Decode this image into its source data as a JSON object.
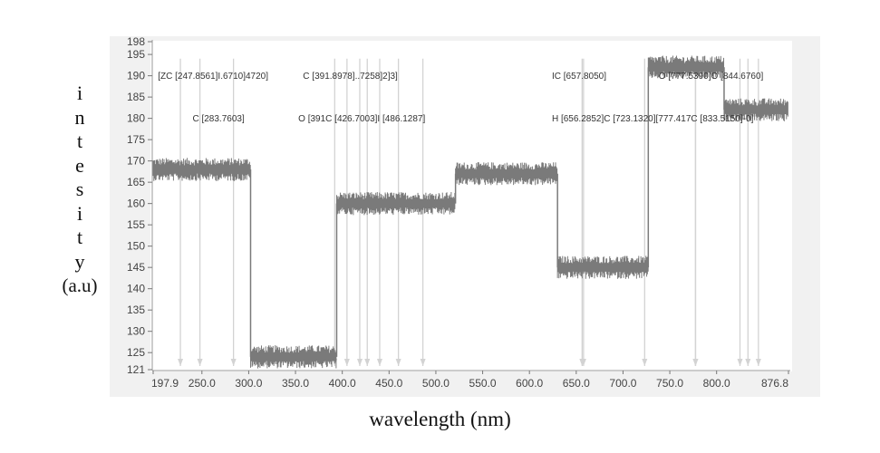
{
  "chart_data": {
    "type": "line",
    "title": "",
    "xlabel": "wavelength (nm)",
    "ylabel": "intesity (a.u)",
    "ylabel_letters": [
      "i",
      "n",
      "t",
      "e",
      "s",
      "i",
      "t",
      "y"
    ],
    "ylabel_unit": "(a.u)",
    "xlim": [
      197.9,
      876.8
    ],
    "ylim": [
      121,
      198
    ],
    "xtick_labels": [
      "197.9",
      "250.0",
      "300.0",
      "350.0",
      "400.0",
      "450.0",
      "500.0",
      "550.0",
      "600.0",
      "650.0",
      "700.0",
      "750.0",
      "800.0",
      "876.8"
    ],
    "xtick_values": [
      197.9,
      250,
      300,
      350,
      400,
      450,
      500,
      550,
      600,
      650,
      700,
      750,
      800,
      876.8
    ],
    "ytick_labels": [
      "198",
      "195",
      "190",
      "185",
      "180",
      "175",
      "170",
      "165",
      "160",
      "155",
      "150",
      "145",
      "140",
      "135",
      "130",
      "125",
      "121"
    ],
    "ytick_values": [
      198,
      195,
      190,
      185,
      180,
      175,
      170,
      165,
      160,
      155,
      150,
      145,
      140,
      135,
      130,
      125,
      121
    ],
    "grid": false,
    "series_color": "#7a7a7a",
    "marker_color": "#d3d3d3",
    "noise_amplitude": 1.6,
    "segments": [
      {
        "x_start": 197.9,
        "x_end": 302,
        "y": 168
      },
      {
        "x_start": 302,
        "x_end": 394,
        "y": 124
      },
      {
        "x_start": 394,
        "x_end": 521,
        "y": 160
      },
      {
        "x_start": 521,
        "x_end": 630,
        "y": 167
      },
      {
        "x_start": 630,
        "x_end": 727,
        "y": 145
      },
      {
        "x_start": 727,
        "x_end": 808,
        "y": 192
      },
      {
        "x_start": 808,
        "x_end": 876.8,
        "y": 182
      }
    ],
    "markers": [
      227,
      247.86,
      283.76,
      391.9,
      405,
      418.7,
      426.7,
      440,
      460,
      486.13,
      656.29,
      657.81,
      723.13,
      777.42,
      777.54,
      825,
      833.52,
      844.68
    ],
    "annotations": [
      {
        "text": "[ZC [247.8561]I.6710]4720]",
        "x": 203,
        "y": 190
      },
      {
        "text": "C [391.8978]..7258]2]3]",
        "x": 358,
        "y": 190
      },
      {
        "text": "IC [657.8050]",
        "x": 624,
        "y": 190
      },
      {
        "text": "O [777.5390]O [844.6760]",
        "x": 738,
        "y": 190
      },
      {
        "text": "C [283.7603]",
        "x": 240,
        "y": 180
      },
      {
        "text": "O [391C [426.7003]I [486.1287]",
        "x": 353,
        "y": 180
      },
      {
        "text": "H [656.2852]C [723.1320][777.417C [833.5150]-0]",
        "x": 624,
        "y": 180
      }
    ]
  }
}
